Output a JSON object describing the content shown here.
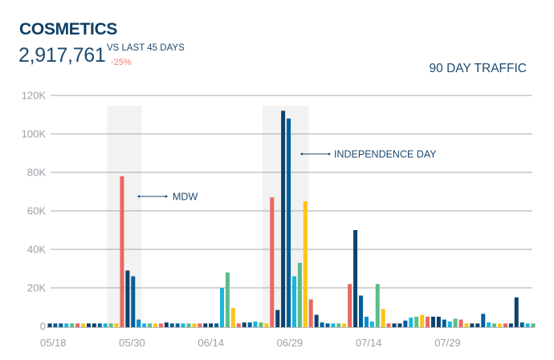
{
  "header": {
    "title": "COSMETICS",
    "total": "2,917,761",
    "comparison_label": "VS LAST 45 DAYS",
    "change": "-25%",
    "chart_label": "90 DAY TRAFFIC"
  },
  "colors": {
    "navy": "#0c426c",
    "blue": "#005f9a",
    "lightblue": "#0a8ccf",
    "cyan": "#19b5de",
    "green": "#5cbd86",
    "red": "#e96862",
    "yellow": "#fcc419",
    "highlight": "#f2f2f2",
    "change_negative": "#ef7a74"
  },
  "chart_data": {
    "type": "bar",
    "title": "90 DAY TRAFFIC",
    "ylim": [
      0,
      120000
    ],
    "y_ticks": [
      "0",
      "20K",
      "40K",
      "60K",
      "80K",
      "100K",
      "120K"
    ],
    "x_ticks": [
      "05/18",
      "05/30",
      "06/14",
      "06/29",
      "07/14",
      "07/29"
    ],
    "grid": true,
    "values": [
      1500,
      1500,
      1500,
      1500,
      1500,
      1500,
      1500,
      1500,
      1500,
      1500,
      1500,
      1500,
      1500,
      78000,
      29000,
      26000,
      3500,
      1500,
      1500,
      1500,
      1500,
      2000,
      1500,
      1500,
      1500,
      1500,
      1500,
      1500,
      1500,
      1500,
      1500,
      20000,
      28000,
      9500,
      1500,
      2000,
      2000,
      2500,
      2000,
      1500,
      67000,
      8500,
      112000,
      108000,
      26000,
      33000,
      65000,
      14000,
      6000,
      2000,
      1500,
      1500,
      1500,
      1500,
      22000,
      50000,
      16000,
      5000,
      2500,
      22000,
      9000,
      1500,
      1500,
      1500,
      3000,
      4500,
      5000,
      6000,
      5000,
      5000,
      5000,
      3500,
      2500,
      4000,
      3500,
      1500,
      1500,
      1500,
      6500,
      2000,
      1500,
      1500,
      1500,
      1500,
      15000,
      2000,
      1500,
      1500
    ],
    "bar_colors": [
      "navy",
      "blue",
      "blue",
      "cyan",
      "green",
      "red",
      "yellow",
      "navy",
      "navy",
      "blue",
      "cyan",
      "green",
      "yellow",
      "red",
      "navy",
      "blue",
      "lightblue",
      "cyan",
      "green",
      "yellow",
      "red",
      "navy",
      "blue",
      "blue",
      "cyan",
      "green",
      "yellow",
      "red",
      "navy",
      "navy",
      "blue",
      "cyan",
      "green",
      "yellow",
      "red",
      "navy",
      "blue",
      "cyan",
      "green",
      "yellow",
      "red",
      "navy",
      "navy",
      "blue",
      "cyan",
      "green",
      "yellow",
      "red",
      "navy",
      "blue",
      "blue",
      "cyan",
      "green",
      "yellow",
      "red",
      "navy",
      "blue",
      "lightblue",
      "cyan",
      "green",
      "yellow",
      "red",
      "navy",
      "navy",
      "blue",
      "cyan",
      "green",
      "yellow",
      "red",
      "navy",
      "navy",
      "blue",
      "cyan",
      "green",
      "red",
      "yellow",
      "navy",
      "navy",
      "blue",
      "cyan",
      "green",
      "yellow",
      "red",
      "navy",
      "navy",
      "blue",
      "cyan",
      "green"
    ],
    "annotations": [
      {
        "label": "MDW"
      },
      {
        "label": "INDEPENDENCE DAY"
      }
    ]
  }
}
